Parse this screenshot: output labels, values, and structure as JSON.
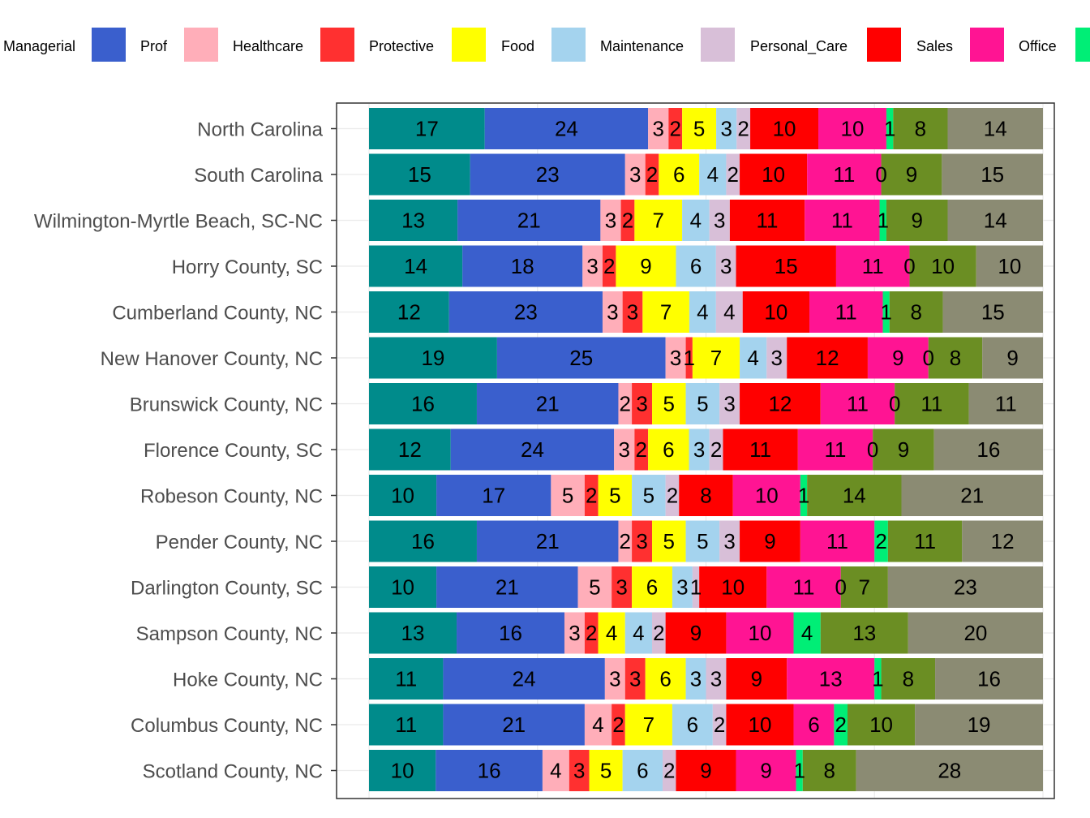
{
  "chart_data": {
    "type": "bar",
    "orientation": "horizontal",
    "stacked": true,
    "legend_position": "top",
    "grid": true,
    "xlim": [
      0,
      100
    ],
    "categories": [
      "North Carolina",
      "South Carolina",
      "Wilmington-Myrtle Beach, SC-NC",
      "Horry County, SC",
      "Cumberland County, NC",
      "New Hanover County, NC",
      "Brunswick County, NC",
      "Florence County, SC",
      "Robeson County, NC",
      "Pender County, NC",
      "Darlington County, SC",
      "Sampson County, NC",
      "Hoke County, NC",
      "Columbus County, NC",
      "Scotland County, NC"
    ],
    "series": [
      {
        "name": "Managerial",
        "color": "#008b8b",
        "values": [
          17,
          15,
          13,
          14,
          12,
          19,
          16,
          12,
          10,
          16,
          10,
          13,
          11,
          11,
          10
        ]
      },
      {
        "name": "Prof",
        "color": "#3a5fcd",
        "values": [
          24,
          23,
          21,
          18,
          23,
          25,
          21,
          24,
          17,
          21,
          21,
          16,
          24,
          21,
          16
        ]
      },
      {
        "name": "Healthcare",
        "color": "#ffaeb9",
        "values": [
          3,
          3,
          3,
          3,
          3,
          3,
          2,
          3,
          5,
          2,
          5,
          3,
          3,
          4,
          4
        ]
      },
      {
        "name": "Protective",
        "color": "#ff3030",
        "values": [
          2,
          2,
          2,
          2,
          3,
          1,
          3,
          2,
          2,
          3,
          3,
          2,
          3,
          2,
          3
        ]
      },
      {
        "name": "Food",
        "color": "#ffff00",
        "values": [
          5,
          6,
          7,
          9,
          7,
          7,
          5,
          6,
          5,
          5,
          6,
          4,
          6,
          7,
          5
        ]
      },
      {
        "name": "Maintenance",
        "color": "#a4d3ee",
        "values": [
          3,
          4,
          4,
          6,
          4,
          4,
          5,
          3,
          5,
          5,
          3,
          4,
          3,
          6,
          6
        ]
      },
      {
        "name": "Personal_Care",
        "color": "#d8bfd8",
        "values": [
          2,
          2,
          3,
          3,
          4,
          3,
          3,
          2,
          2,
          3,
          1,
          2,
          3,
          2,
          2
        ]
      },
      {
        "name": "Sales",
        "color": "#ff0000",
        "values": [
          10,
          10,
          11,
          15,
          10,
          12,
          12,
          11,
          8,
          9,
          10,
          9,
          9,
          10,
          9
        ]
      },
      {
        "name": "Office",
        "color": "#ff1493",
        "values": [
          10,
          11,
          11,
          11,
          11,
          9,
          11,
          11,
          10,
          11,
          11,
          10,
          13,
          6,
          9
        ]
      },
      {
        "name": "",
        "color": "#00ee76",
        "values": [
          1,
          0,
          1,
          0,
          1,
          0,
          0,
          0,
          1,
          2,
          0,
          4,
          1,
          2,
          1
        ]
      },
      {
        "name": "",
        "color": "#6b8e23",
        "values": [
          8,
          9,
          9,
          10,
          8,
          8,
          11,
          9,
          14,
          11,
          7,
          13,
          8,
          10,
          8
        ]
      },
      {
        "name": "",
        "color": "#8b8b73",
        "values": [
          14,
          15,
          14,
          10,
          15,
          9,
          11,
          16,
          21,
          12,
          23,
          20,
          16,
          19,
          28
        ]
      }
    ]
  }
}
